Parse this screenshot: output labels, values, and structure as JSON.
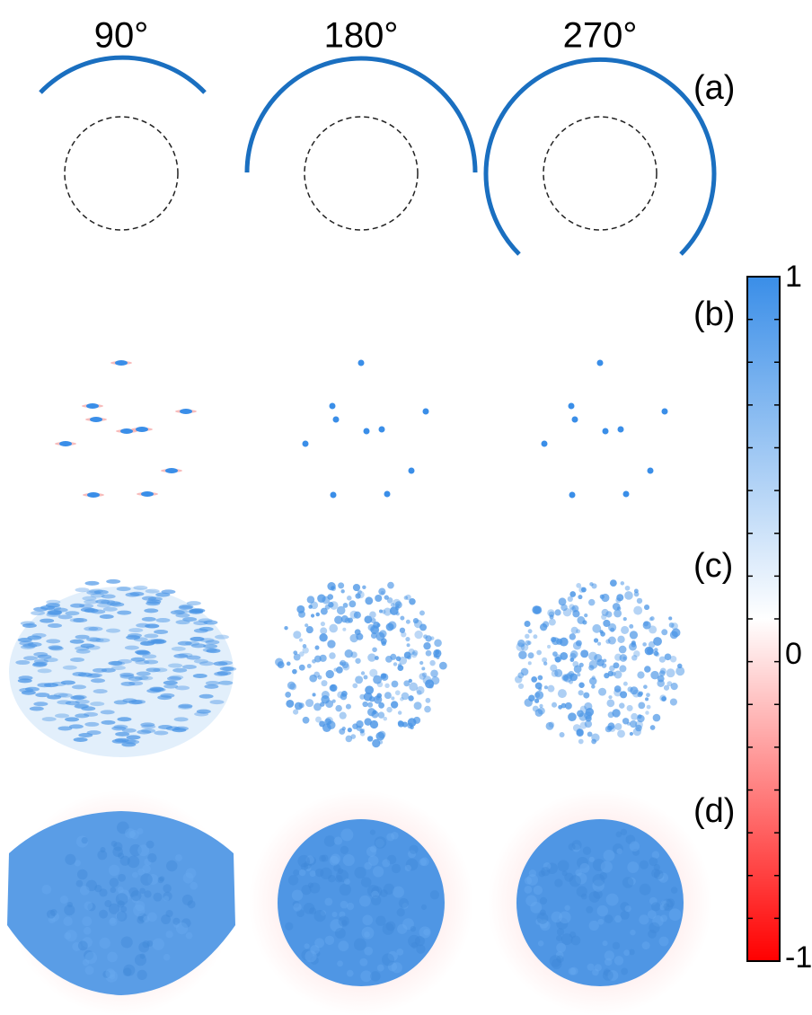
{
  "columns": [
    "90°",
    "180°",
    "270°"
  ],
  "panels": [
    "(a)",
    "(b)",
    "(c)",
    "(d)"
  ],
  "colorbar": {
    "ticks": [
      1,
      0,
      -1
    ]
  }
}
